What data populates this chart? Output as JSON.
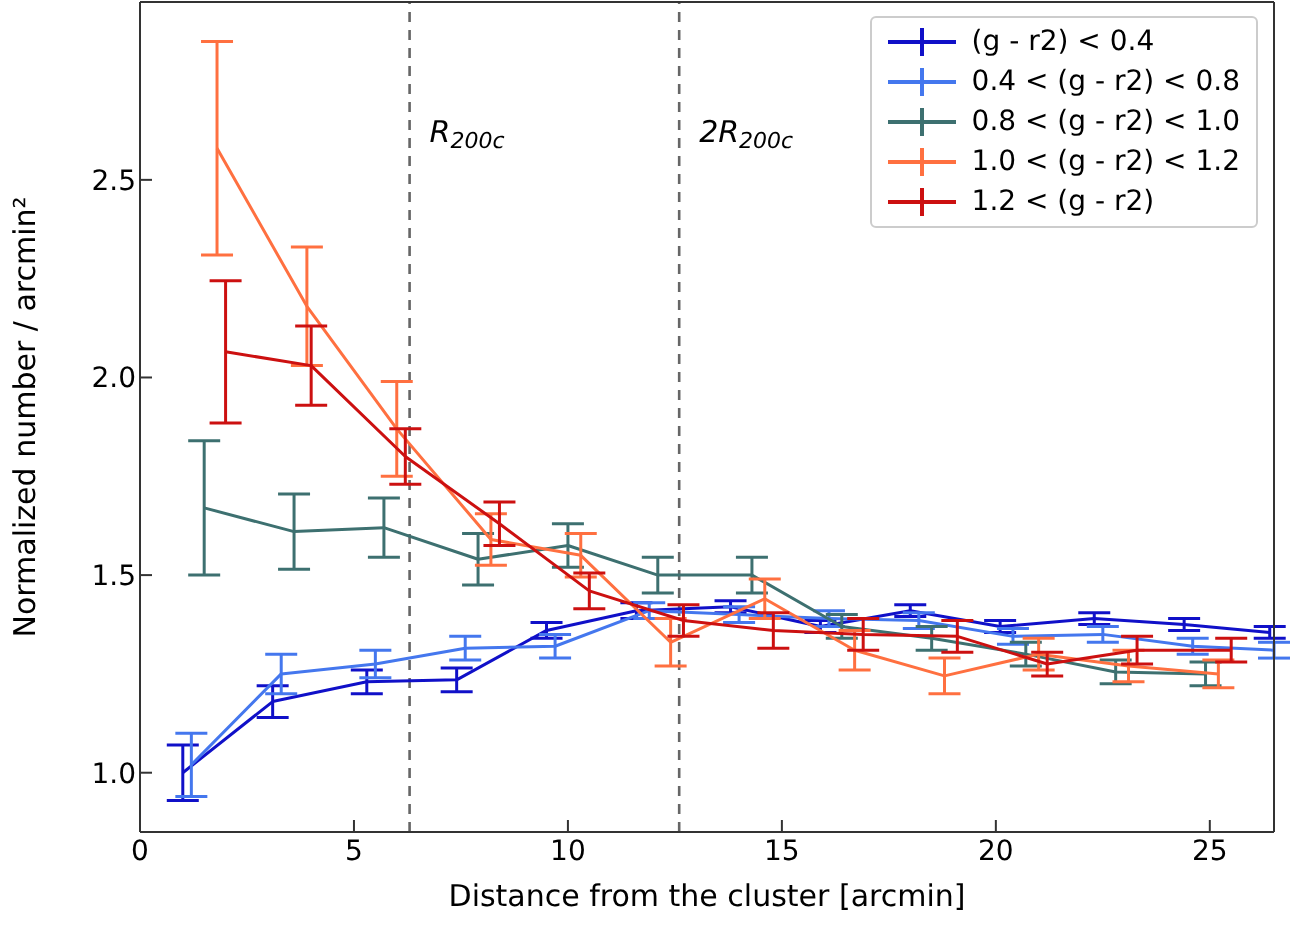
{
  "chart_data": {
    "type": "line",
    "xlabel": "Distance from the cluster [arcmin]",
    "ylabel": "Normalized number / arcmin²",
    "xlim": [
      0,
      26.5
    ],
    "xticks": [
      0,
      5,
      10,
      15,
      20,
      25
    ],
    "ylim": [
      0.85,
      2.95
    ],
    "yticks": [
      {
        "value": 1,
        "label": "1.0"
      },
      {
        "value": 1.5,
        "label": "1.5"
      },
      {
        "value": 2,
        "label": "2.0"
      },
      {
        "value": 2.5,
        "label": "2.5"
      }
    ],
    "legend": "top right",
    "marker": "none",
    "line_style": "solid",
    "ref_lines": [
      {
        "axis": "x",
        "value": 6.3,
        "label": "R$_{200c}$",
        "color": "#666666",
        "line_style": "dashed"
      },
      {
        "axis": "x",
        "value": 12.6,
        "label": "2R$_{200c}$",
        "color": "#666666",
        "line_style": "dashed"
      }
    ],
    "series": [
      {
        "name": "(g - r2) < 0.4",
        "color": "#1010c8",
        "x": [
          1.0,
          3.1,
          5.3,
          7.4,
          9.5,
          11.6,
          13.8,
          15.9,
          18.0,
          20.1,
          22.3,
          24.4,
          26.4
        ],
        "values": [
          1.0,
          1.18,
          1.23,
          1.235,
          1.36,
          1.41,
          1.42,
          1.37,
          1.41,
          1.37,
          1.39,
          1.375,
          1.355
        ],
        "errors": [
          0.07,
          0.04,
          0.03,
          0.03,
          0.02,
          0.02,
          0.015,
          0.015,
          0.015,
          0.015,
          0.015,
          0.015,
          0.015
        ]
      },
      {
        "name": "0.4 < (g - r2) < 0.8",
        "color": "#4477ee",
        "x": [
          1.2,
          3.3,
          5.5,
          7.6,
          9.7,
          11.9,
          14.0,
          16.1,
          18.2,
          20.4,
          22.5,
          24.6,
          26.5
        ],
        "values": [
          1.02,
          1.25,
          1.275,
          1.315,
          1.32,
          1.41,
          1.4,
          1.39,
          1.385,
          1.345,
          1.35,
          1.32,
          1.31
        ],
        "errors": [
          0.08,
          0.05,
          0.035,
          0.03,
          0.03,
          0.02,
          0.02,
          0.02,
          0.02,
          0.02,
          0.02,
          0.02,
          0.02
        ]
      },
      {
        "name": "0.8 < (g - r2) < 1.0",
        "color": "#3d7070",
        "x": [
          1.5,
          3.6,
          5.7,
          7.9,
          10.0,
          12.1,
          14.3,
          16.4,
          18.5,
          20.7,
          22.8,
          24.9
        ],
        "values": [
          1.67,
          1.61,
          1.62,
          1.54,
          1.575,
          1.5,
          1.5,
          1.37,
          1.34,
          1.3,
          1.255,
          1.25
        ],
        "errors": [
          0.17,
          0.095,
          0.075,
          0.065,
          0.055,
          0.045,
          0.045,
          0.03,
          0.03,
          0.03,
          0.03,
          0.03
        ]
      },
      {
        "name": "1.0 < (g - r2) < 1.2",
        "color": "#ff7040",
        "x": [
          1.8,
          3.9,
          6.0,
          8.2,
          10.3,
          12.4,
          14.6,
          16.7,
          18.8,
          21.0,
          23.1,
          25.2
        ],
        "values": [
          2.58,
          2.18,
          1.87,
          1.59,
          1.55,
          1.33,
          1.44,
          1.31,
          1.245,
          1.3,
          1.27,
          1.25
        ],
        "errors": [
          0.27,
          0.15,
          0.12,
          0.065,
          0.055,
          0.06,
          0.05,
          0.05,
          0.045,
          0.04,
          0.04,
          0.035
        ]
      },
      {
        "name": "1.2 < (g - r2)",
        "color": "#cc1010",
        "x": [
          2.0,
          4.0,
          6.2,
          8.4,
          10.5,
          12.7,
          14.8,
          16.9,
          19.1,
          21.2,
          23.3,
          25.5
        ],
        "values": [
          2.065,
          2.03,
          1.8,
          1.63,
          1.46,
          1.385,
          1.36,
          1.35,
          1.345,
          1.275,
          1.31,
          1.31
        ],
        "errors": [
          0.18,
          0.1,
          0.07,
          0.055,
          0.045,
          0.04,
          0.045,
          0.04,
          0.04,
          0.03,
          0.035,
          0.03
        ]
      }
    ]
  }
}
